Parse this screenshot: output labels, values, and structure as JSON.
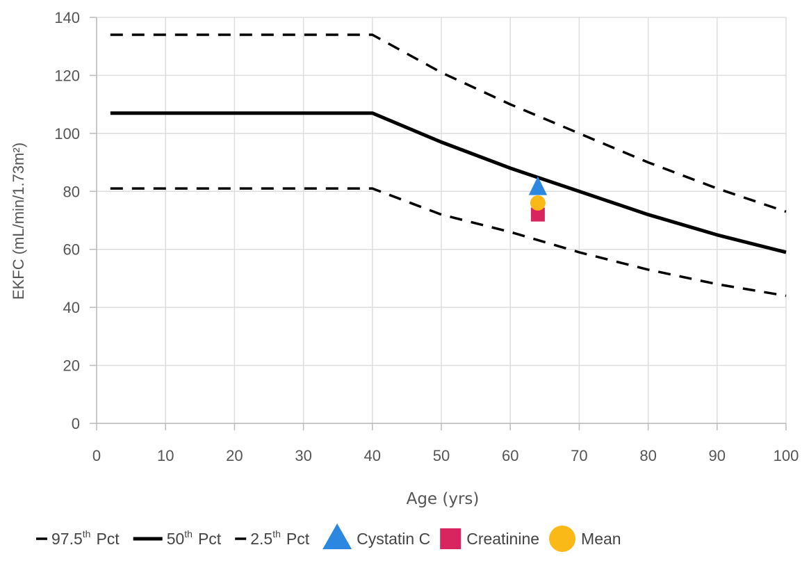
{
  "chart_data": {
    "type": "line",
    "xlabel": "Age (yrs)",
    "ylabel": "EKFC (mL/min/1.73m²)",
    "xlim": [
      0,
      100
    ],
    "ylim": [
      0,
      140
    ],
    "x_ticks": [
      0,
      10,
      20,
      30,
      40,
      50,
      60,
      70,
      80,
      90,
      100
    ],
    "y_ticks": [
      0,
      20,
      40,
      60,
      80,
      100,
      120,
      140
    ],
    "grid": true,
    "legend_placement": "bottom",
    "series": [
      {
        "name": "97.5th Pct",
        "label_main": "97.5",
        "label_sup": "th",
        "label_suffix": "Pct",
        "style": "dashed",
        "color": "#000000",
        "points": [
          [
            2,
            134
          ],
          [
            40,
            134
          ],
          [
            50,
            121
          ],
          [
            60,
            110
          ],
          [
            70,
            100
          ],
          [
            80,
            90
          ],
          [
            90,
            81
          ],
          [
            100,
            73
          ]
        ]
      },
      {
        "name": "50th Pct",
        "label_main": "50",
        "label_sup": "th",
        "label_suffix": "Pct",
        "style": "solid",
        "color": "#000000",
        "points": [
          [
            2,
            107
          ],
          [
            40,
            107
          ],
          [
            50,
            97
          ],
          [
            60,
            88
          ],
          [
            70,
            80
          ],
          [
            80,
            72
          ],
          [
            90,
            65
          ],
          [
            100,
            59
          ]
        ]
      },
      {
        "name": "2.5th Pct",
        "label_main": "2.5",
        "label_sup": "th",
        "label_suffix": "Pct",
        "style": "dashed",
        "color": "#000000",
        "points": [
          [
            2,
            81
          ],
          [
            40,
            81
          ],
          [
            50,
            72
          ],
          [
            60,
            66
          ],
          [
            70,
            59
          ],
          [
            80,
            53
          ],
          [
            90,
            48
          ],
          [
            100,
            44
          ]
        ]
      }
    ],
    "markers": [
      {
        "name": "Cystatin C",
        "shape": "triangle",
        "color": "#2b87e0",
        "x": 64,
        "y": 80
      },
      {
        "name": "Creatinine",
        "shape": "square",
        "color": "#d8245f",
        "x": 64,
        "y": 72
      },
      {
        "name": "Mean",
        "shape": "circle",
        "color": "#fbb917",
        "x": 64,
        "y": 76
      }
    ]
  }
}
